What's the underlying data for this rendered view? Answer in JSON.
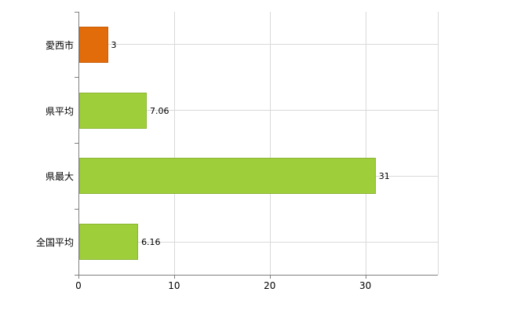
{
  "chart_data": {
    "type": "bar",
    "orientation": "horizontal",
    "title": "",
    "xlabel": "",
    "ylabel": "",
    "categories": [
      "愛西市",
      "県平均",
      "県最大",
      "全国平均"
    ],
    "values": [
      3,
      7.06,
      31,
      6.16
    ],
    "value_labels": [
      "3",
      "7.06",
      "31",
      "6.16"
    ],
    "bar_colors": [
      "#e36c0a",
      "#9fce3b",
      "#9fce3b",
      "#9fce3b"
    ],
    "xlim": [
      0,
      37.5
    ],
    "x_ticks": [
      0,
      10,
      20,
      30
    ],
    "x_tick_labels": [
      "0",
      "10",
      "20",
      "30"
    ],
    "grid": true,
    "legend": "none",
    "colors": {
      "highlight_bar": "#e36c0a",
      "default_bar": "#9fce3b",
      "gridline": "#d9d9d9",
      "axis": "#7f7f7f",
      "background": "#ffffff"
    }
  }
}
